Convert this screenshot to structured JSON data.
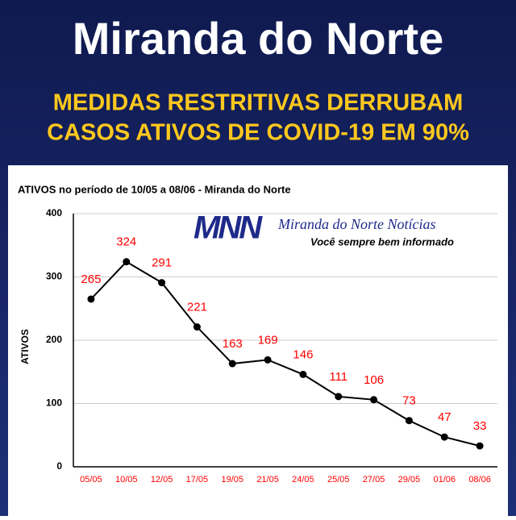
{
  "header": {
    "title": "Miranda do Norte",
    "subtitle": [
      "MEDIDAS RESTRITIVAS DERRUBAM",
      "CASOS ATIVOS DE COVID-19 EM 90%"
    ]
  },
  "logo": {
    "mark": "MNN",
    "name": "Miranda do Norte Notícias",
    "tagline": "Você sempre bem informado"
  },
  "chart_data": {
    "type": "line",
    "title": "ATIVOS no período de 10/05 a 08/06 - Miranda do Norte",
    "y_label": "ATIVOS",
    "categories": [
      "05/05",
      "10/05",
      "12/05",
      "17/05",
      "19/05",
      "21/05",
      "24/05",
      "25/05",
      "27/05",
      "29/05",
      "01/06",
      "08/06"
    ],
    "values": [
      265,
      324,
      291,
      221,
      163,
      169,
      146,
      111,
      106,
      73,
      47,
      33
    ],
    "color": "#000000",
    "label_color": "#ff0000",
    "tick_label_color": "#ff0000",
    "ylim": [
      0,
      400
    ],
    "yticks": [
      0,
      100,
      200,
      300,
      400
    ],
    "grid": true
  }
}
